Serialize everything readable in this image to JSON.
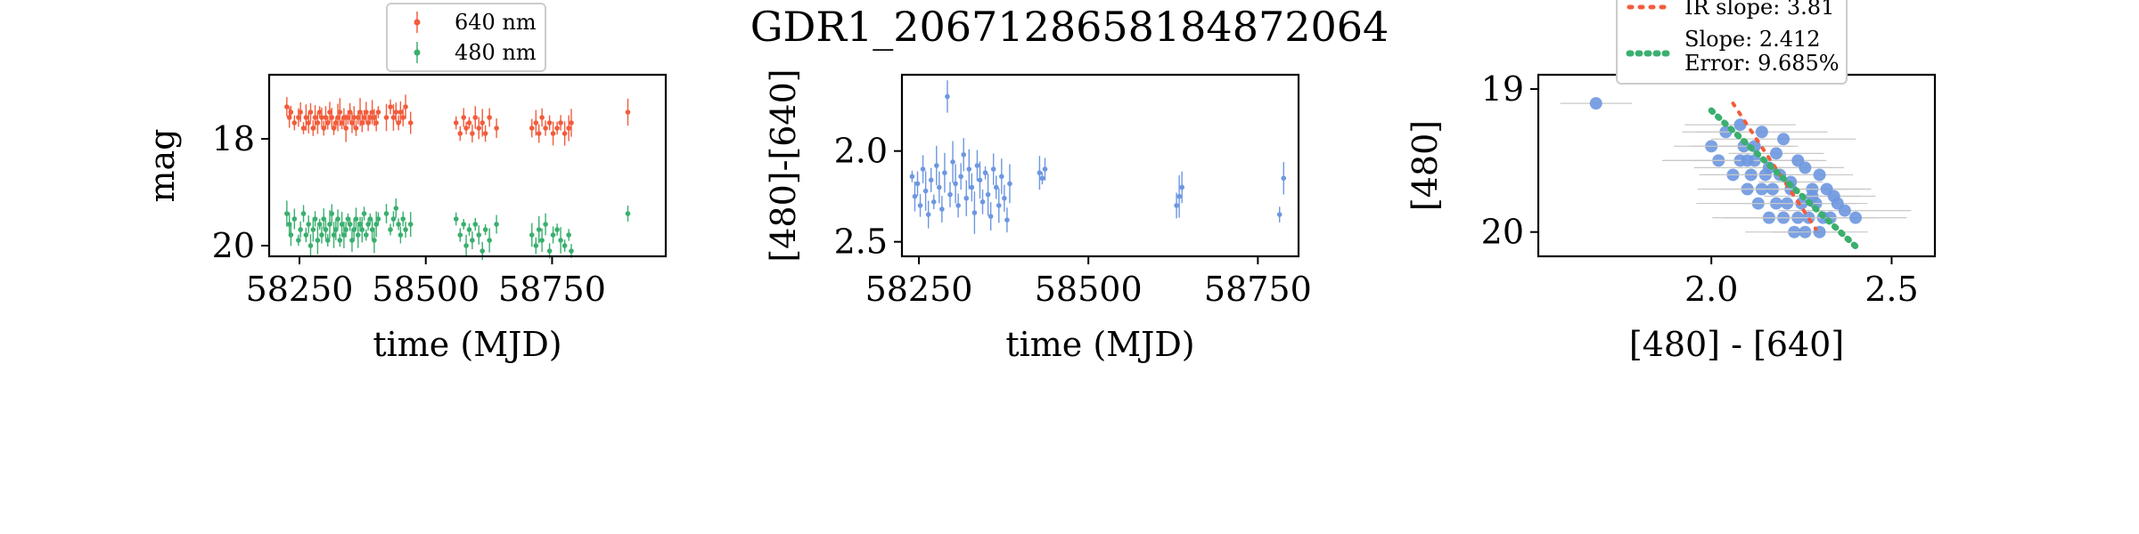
{
  "title": "GDR1_2067128658184872064",
  "colors": {
    "red": "#f25c3c",
    "green": "#3aaf6e",
    "blue": "#6d97e0",
    "gray": "#c8c8c8"
  },
  "chart_data": [
    {
      "type": "scatter",
      "panel": "light-curve",
      "xlabel": "time (MJD)",
      "ylabel": "mag",
      "xlim": [
        58190,
        58975
      ],
      "ylim": [
        20.2,
        16.8
      ],
      "xticks": [
        58250,
        58500,
        58750
      ],
      "xticklabels": [
        "58250",
        "58500",
        "58750"
      ],
      "yticks": [
        18,
        20
      ],
      "yticklabels": [
        "18",
        "20"
      ],
      "legend_position": "top-center",
      "series": [
        {
          "name": "640 nm",
          "color": "#f25c3c",
          "x": [
            58225,
            58230,
            58233,
            58240,
            58248,
            58252,
            58258,
            58263,
            58268,
            58272,
            58277,
            58281,
            58286,
            58290,
            58294,
            58298,
            58302,
            58306,
            58310,
            58314,
            58318,
            58322,
            58326,
            58330,
            58334,
            58338,
            58342,
            58346,
            58350,
            58354,
            58358,
            58362,
            58366,
            58370,
            58374,
            58378,
            58382,
            58386,
            58390,
            58394,
            58398,
            58402,
            58406,
            58422,
            58430,
            58436,
            58441,
            58446,
            58450,
            58455,
            58460,
            58470,
            58560,
            58568,
            58575,
            58580,
            58586,
            58592,
            58598,
            58605,
            58612,
            58618,
            58626,
            58640,
            58710,
            58718,
            58724,
            58730,
            58737,
            58745,
            58752,
            58760,
            58767,
            58775,
            58783,
            58788,
            58900
          ],
          "y": [
            17.4,
            17.6,
            17.5,
            17.7,
            17.6,
            17.5,
            17.8,
            17.6,
            17.7,
            17.5,
            17.8,
            17.6,
            17.7,
            17.5,
            17.6,
            17.8,
            17.6,
            17.7,
            17.5,
            17.6,
            17.8,
            17.7,
            17.6,
            17.5,
            17.7,
            17.6,
            17.8,
            17.6,
            17.5,
            17.7,
            17.6,
            17.8,
            17.6,
            17.5,
            17.7,
            17.6,
            17.5,
            17.7,
            17.6,
            17.5,
            17.6,
            17.7,
            17.5,
            17.6,
            17.4,
            17.6,
            17.5,
            17.7,
            17.5,
            17.6,
            17.4,
            17.7,
            17.7,
            17.9,
            17.6,
            17.8,
            17.7,
            17.9,
            17.6,
            17.8,
            17.7,
            17.9,
            17.6,
            17.8,
            17.8,
            17.7,
            17.9,
            17.6,
            17.8,
            17.7,
            17.9,
            17.8,
            17.7,
            17.9,
            17.8,
            17.7,
            17.5
          ]
        },
        {
          "name": "480 nm",
          "color": "#3aaf6e",
          "x": [
            58225,
            58230,
            58233,
            58240,
            58248,
            58252,
            58258,
            58263,
            58268,
            58272,
            58277,
            58281,
            58286,
            58290,
            58294,
            58298,
            58302,
            58306,
            58310,
            58314,
            58318,
            58322,
            58326,
            58330,
            58334,
            58338,
            58342,
            58346,
            58350,
            58354,
            58358,
            58362,
            58366,
            58370,
            58374,
            58378,
            58382,
            58386,
            58390,
            58394,
            58398,
            58402,
            58406,
            58422,
            58430,
            58436,
            58441,
            58446,
            58450,
            58455,
            58460,
            58470,
            58560,
            58568,
            58575,
            58580,
            58586,
            58592,
            58598,
            58605,
            58612,
            58618,
            58626,
            58640,
            58710,
            58718,
            58724,
            58730,
            58737,
            58745,
            58752,
            58760,
            58767,
            58775,
            58783,
            58788,
            58900
          ],
          "y": [
            19.4,
            19.6,
            19.8,
            19.5,
            19.9,
            19.7,
            19.4,
            19.8,
            19.6,
            20.0,
            19.7,
            19.5,
            19.9,
            19.6,
            19.8,
            19.5,
            19.7,
            19.9,
            19.6,
            19.4,
            19.8,
            19.7,
            19.5,
            19.9,
            19.6,
            19.8,
            19.7,
            19.5,
            19.6,
            19.9,
            19.7,
            19.5,
            19.8,
            19.6,
            19.7,
            19.4,
            19.8,
            19.6,
            19.5,
            19.7,
            19.9,
            19.6,
            19.5,
            19.4,
            19.7,
            19.5,
            19.3,
            19.6,
            19.8,
            19.5,
            19.7,
            19.6,
            19.5,
            19.8,
            19.6,
            20.0,
            19.7,
            19.9,
            19.6,
            19.8,
            20.1,
            19.7,
            19.9,
            19.6,
            19.8,
            20.0,
            19.7,
            19.9,
            19.6,
            20.1,
            19.8,
            19.7,
            19.9,
            20.0,
            19.8,
            20.1,
            19.4
          ]
        }
      ],
      "legend": [
        "640 nm",
        "480 nm"
      ]
    },
    {
      "type": "scatter",
      "panel": "color-curve",
      "xlabel": "time (MJD)",
      "ylabel": "[480]-[640]",
      "xlim": [
        58225,
        58810
      ],
      "ylim": [
        2.58,
        1.58
      ],
      "xticks": [
        58250,
        58500,
        58750
      ],
      "xticklabels": [
        "58250",
        "58500",
        "58750"
      ],
      "yticks": [
        2.0,
        2.5
      ],
      "yticklabels": [
        "2.0",
        "2.5"
      ],
      "series": [
        {
          "color": "#6d97e0",
          "x": [
            58240,
            58244,
            58248,
            58252,
            58256,
            58260,
            58264,
            58268,
            58272,
            58276,
            58280,
            58284,
            58288,
            58292,
            58296,
            58300,
            58304,
            58308,
            58312,
            58316,
            58320,
            58324,
            58328,
            58332,
            58336,
            58340,
            58344,
            58348,
            58352,
            58356,
            58360,
            58364,
            58368,
            58372,
            58376,
            58380,
            58384,
            58428,
            58432,
            58436,
            58630,
            58634,
            58638,
            58782,
            58788
          ],
          "y": [
            2.14,
            2.25,
            2.18,
            2.3,
            2.1,
            2.22,
            2.35,
            2.16,
            2.28,
            2.08,
            2.2,
            2.32,
            2.12,
            1.7,
            2.24,
            2.06,
            2.18,
            2.3,
            2.14,
            2.02,
            2.26,
            2.1,
            2.2,
            2.34,
            2.08,
            2.16,
            2.28,
            2.12,
            2.24,
            2.36,
            2.1,
            2.2,
            2.3,
            2.14,
            2.26,
            2.38,
            2.18,
            2.12,
            2.15,
            2.1,
            2.3,
            2.25,
            2.2,
            2.35,
            2.15
          ]
        }
      ]
    },
    {
      "type": "scatter",
      "panel": "color-magnitude",
      "xlabel": "[480] - [640]",
      "ylabel": "[480]",
      "xlim": [
        1.52,
        2.62
      ],
      "ylim": [
        20.17,
        18.9
      ],
      "xticks": [
        2.0,
        2.5
      ],
      "xticklabels": [
        "2.0",
        "2.5"
      ],
      "yticks": [
        19,
        20
      ],
      "yticklabels": [
        "19",
        "20"
      ],
      "legend_position": "top-right",
      "legend": [
        "IR slope: 3.81",
        "Slope: 2.412",
        "Error: 9.685%"
      ],
      "series": [
        {
          "name": "data",
          "color": "#6d97e0",
          "x": [
            1.68,
            2.0,
            2.02,
            2.04,
            2.06,
            2.08,
            2.09,
            2.1,
            2.11,
            2.12,
            2.13,
            2.14,
            2.15,
            2.16,
            2.17,
            2.18,
            2.19,
            2.2,
            2.21,
            2.22,
            2.23,
            2.24,
            2.25,
            2.26,
            2.27,
            2.28,
            2.29,
            2.3,
            2.31,
            2.32,
            2.33,
            2.35,
            2.37,
            2.4,
            2.1,
            2.16,
            2.22,
            2.28,
            2.12,
            2.18,
            2.24,
            2.3,
            2.14,
            2.2,
            2.26,
            2.08,
            2.34
          ],
          "y": [
            19.1,
            19.4,
            19.5,
            19.3,
            19.6,
            19.5,
            19.4,
            19.7,
            19.6,
            19.5,
            19.8,
            19.7,
            19.6,
            19.9,
            19.7,
            19.8,
            19.6,
            19.9,
            19.8,
            19.7,
            20.0,
            19.9,
            19.8,
            20.0,
            19.9,
            19.7,
            19.8,
            20.0,
            19.9,
            19.7,
            19.9,
            19.8,
            19.85,
            19.9,
            19.5,
            19.55,
            19.65,
            19.75,
            19.4,
            19.45,
            19.5,
            19.6,
            19.3,
            19.35,
            19.55,
            19.25,
            19.75
          ]
        },
        {
          "name": "IR slope: 3.81",
          "color": "#f25c3c",
          "style": "dotted",
          "x": [
            2.06,
            2.29
          ],
          "y": [
            19.1,
            19.98
          ]
        },
        {
          "name": "Slope: 2.412",
          "color": "#3aaf6e",
          "style": "dotted",
          "x": [
            2.0,
            2.4
          ],
          "y": [
            19.15,
            20.1
          ]
        }
      ]
    }
  ]
}
